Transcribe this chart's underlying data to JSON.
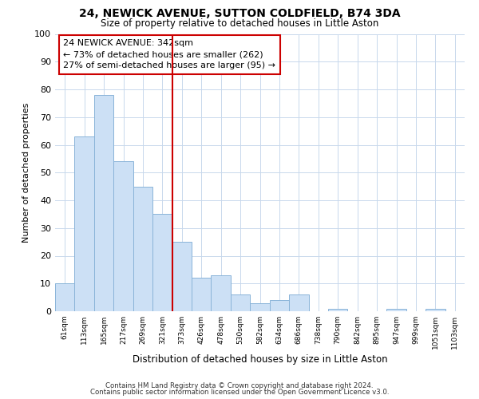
{
  "title": "24, NEWICK AVENUE, SUTTON COLDFIELD, B74 3DA",
  "subtitle": "Size of property relative to detached houses in Little Aston",
  "xlabel": "Distribution of detached houses by size in Little Aston",
  "ylabel": "Number of detached properties",
  "bin_labels": [
    "61sqm",
    "113sqm",
    "165sqm",
    "217sqm",
    "269sqm",
    "321sqm",
    "373sqm",
    "426sqm",
    "478sqm",
    "530sqm",
    "582sqm",
    "634sqm",
    "686sqm",
    "738sqm",
    "790sqm",
    "842sqm",
    "895sqm",
    "947sqm",
    "999sqm",
    "1051sqm",
    "1103sqm"
  ],
  "bar_heights": [
    10,
    63,
    78,
    54,
    45,
    35,
    25,
    12,
    13,
    6,
    3,
    4,
    6,
    0,
    1,
    0,
    0,
    1,
    0,
    1,
    0
  ],
  "bar_color": "#cce0f5",
  "bar_edge_color": "#8ab4d8",
  "vline_color": "#cc0000",
  "annotation_text": "24 NEWICK AVENUE: 342sqm\n← 73% of detached houses are smaller (262)\n27% of semi-detached houses are larger (95) →",
  "annotation_box_color": "#ffffff",
  "annotation_box_edge_color": "#cc0000",
  "ylim": [
    0,
    100
  ],
  "yticks": [
    0,
    10,
    20,
    30,
    40,
    50,
    60,
    70,
    80,
    90,
    100
  ],
  "footer1": "Contains HM Land Registry data © Crown copyright and database right 2024.",
  "footer2": "Contains public sector information licensed under the Open Government Licence v3.0.",
  "background_color": "#ffffff",
  "grid_color": "#c8d8ec"
}
